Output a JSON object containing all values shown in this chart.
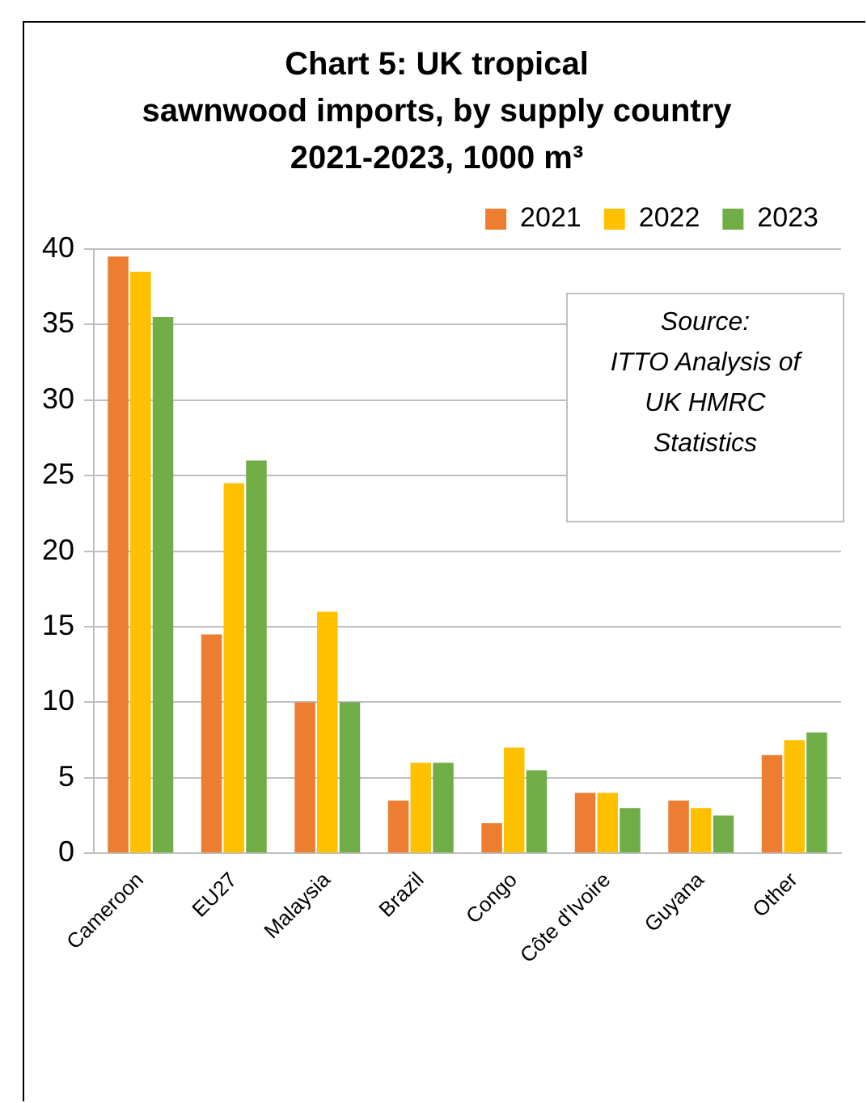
{
  "chart_data": {
    "type": "bar",
    "title": "Chart 5: UK tropical\nsawnwood imports, by supply country\n2021-2023, 1000 m³",
    "categories": [
      "Cameroon",
      "EU27",
      "Malaysia",
      "Brazil",
      "Congo",
      "Côte d'Ivoire",
      "Guyana",
      "Other"
    ],
    "series": [
      {
        "name": "2021",
        "color": "#ed7d31",
        "values": [
          39.5,
          14.5,
          10,
          3.5,
          2,
          4,
          3.5,
          6.5
        ]
      },
      {
        "name": "2022",
        "color": "#ffc000",
        "values": [
          38.5,
          24.5,
          16,
          6,
          7,
          4,
          3,
          7.5
        ]
      },
      {
        "name": "2023",
        "color": "#70ad47",
        "values": [
          35.5,
          26,
          10,
          6,
          5.5,
          3,
          2.5,
          8
        ]
      }
    ],
    "ylim": [
      0,
      40
    ],
    "yticks": [
      0,
      5,
      10,
      15,
      20,
      25,
      30,
      35,
      40
    ],
    "grid": "y",
    "legend": "top right",
    "annotations": [
      "Source:\nITTO Analysis of\nUK HMRC\nStatistics"
    ]
  }
}
